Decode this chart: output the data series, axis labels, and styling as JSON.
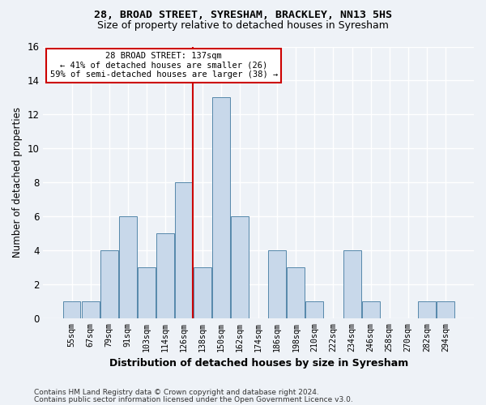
{
  "title1": "28, BROAD STREET, SYRESHAM, BRACKLEY, NN13 5HS",
  "title2": "Size of property relative to detached houses in Syresham",
  "xlabel": "Distribution of detached houses by size in Syresham",
  "ylabel": "Number of detached properties",
  "categories": [
    "55sqm",
    "67sqm",
    "79sqm",
    "91sqm",
    "103sqm",
    "114sqm",
    "126sqm",
    "138sqm",
    "150sqm",
    "162sqm",
    "174sqm",
    "186sqm",
    "198sqm",
    "210sqm",
    "222sqm",
    "234sqm",
    "246sqm",
    "258sqm",
    "270sqm",
    "282sqm",
    "294sqm"
  ],
  "values": [
    1,
    1,
    4,
    6,
    3,
    5,
    8,
    3,
    13,
    6,
    0,
    4,
    3,
    1,
    0,
    4,
    1,
    0,
    0,
    1,
    1
  ],
  "bar_color": "#c8d8ea",
  "bar_edge_color": "#5588aa",
  "annotation_title": "28 BROAD STREET: 137sqm",
  "annotation_line1": "← 41% of detached houses are smaller (26)",
  "annotation_line2": "59% of semi-detached houses are larger (38) →",
  "vline_color": "#cc0000",
  "vline_bin_index": 7,
  "ylim": [
    0,
    16
  ],
  "yticks": [
    0,
    2,
    4,
    6,
    8,
    10,
    12,
    14,
    16
  ],
  "footnote1": "Contains HM Land Registry data © Crown copyright and database right 2024.",
  "footnote2": "Contains public sector information licensed under the Open Government Licence v3.0.",
  "bg_color": "#eef2f7",
  "grid_color": "#ffffff"
}
